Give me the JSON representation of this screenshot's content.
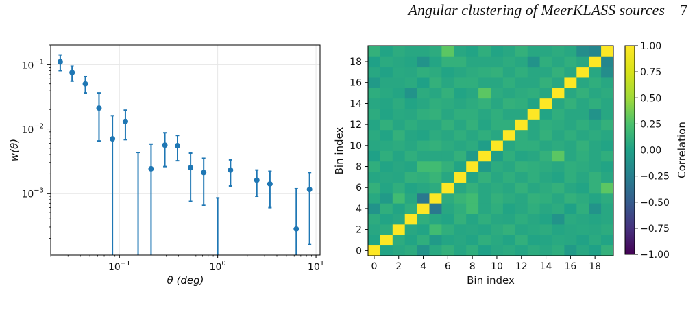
{
  "header": {
    "running_title": "Angular clustering of MeerKLASS sources",
    "page_number": "7"
  },
  "chart_data": [
    {
      "type": "scatter",
      "title": "",
      "xlabel": "θ (deg)",
      "ylabel": "w(θ)",
      "xscale": "log",
      "yscale": "log",
      "xlim": [
        0.02,
        11
      ],
      "ylim": [
        0.00011,
        0.2
      ],
      "grid": true,
      "xticks": [
        {
          "value": 0.1,
          "base": "10",
          "exp": "−1"
        },
        {
          "value": 1,
          "base": "10",
          "exp": "0"
        },
        {
          "value": 10,
          "base": "10",
          "exp": "1"
        }
      ],
      "yticks": [
        {
          "value": 0.001,
          "base": "10",
          "exp": "−3"
        },
        {
          "value": 0.01,
          "base": "10",
          "exp": "−2"
        },
        {
          "value": 0.1,
          "base": "10",
          "exp": "−1"
        }
      ],
      "marker_color": "#1f77b4",
      "points": [
        {
          "x": 0.025,
          "y": 0.11,
          "lo": 0.08,
          "hi": 0.14
        },
        {
          "x": 0.033,
          "y": 0.075,
          "lo": 0.055,
          "hi": 0.095
        },
        {
          "x": 0.045,
          "y": 0.05,
          "lo": 0.036,
          "hi": 0.065
        },
        {
          "x": 0.062,
          "y": 0.021,
          "lo": 0.0065,
          "hi": 0.036
        },
        {
          "x": 0.085,
          "y": 0.007,
          "lo": null,
          "hi": 0.016
        },
        {
          "x": 0.115,
          "y": 0.013,
          "lo": 0.0068,
          "hi": 0.0195
        },
        {
          "x": 0.155,
          "y": null,
          "lo": null,
          "hi": 0.0043
        },
        {
          "x": 0.21,
          "y": 0.0024,
          "lo": null,
          "hi": 0.0058
        },
        {
          "x": 0.29,
          "y": 0.0056,
          "lo": 0.0026,
          "hi": 0.0087
        },
        {
          "x": 0.39,
          "y": 0.0055,
          "lo": 0.0032,
          "hi": 0.0079
        },
        {
          "x": 0.53,
          "y": 0.0025,
          "lo": 0.00075,
          "hi": 0.0042
        },
        {
          "x": 0.72,
          "y": 0.0021,
          "lo": 0.00065,
          "hi": 0.0035
        },
        {
          "x": 1.0,
          "y": null,
          "lo": null,
          "hi": 0.00085
        },
        {
          "x": 1.35,
          "y": 0.0023,
          "lo": 0.0013,
          "hi": 0.0033
        },
        {
          "x": 2.5,
          "y": 0.0016,
          "lo": 0.0009,
          "hi": 0.0023
        },
        {
          "x": 3.4,
          "y": 0.0014,
          "lo": 0.0006,
          "hi": 0.0022
        },
        {
          "x": 6.3,
          "y": 0.00028,
          "lo": null,
          "hi": 0.00118
        },
        {
          "x": 8.6,
          "y": 0.00115,
          "lo": 0.00016,
          "hi": 0.0021
        }
      ]
    },
    {
      "type": "heatmap",
      "title": "",
      "xlabel": "Bin index",
      "ylabel": "Bin index",
      "colorbar_label": "Correlation",
      "vmin": -1.0,
      "vmax": 1.0,
      "colormap": "viridis",
      "n": 20,
      "xticks": [
        0,
        2,
        4,
        6,
        8,
        10,
        12,
        14,
        16,
        18
      ],
      "yticks": [
        0,
        2,
        4,
        6,
        8,
        10,
        12,
        14,
        16,
        18
      ],
      "colorbar_ticks": [
        "1.00",
        "0.75",
        "0.50",
        "0.25",
        "0.00",
        "−0.25",
        "−0.50",
        "−0.75",
        "−1.00"
      ],
      "z": [
        [
          1.0,
          0.02,
          0.05,
          0.08,
          -0.1,
          0.06,
          0.12,
          0.04,
          0.1,
          0.0,
          0.05,
          0.07,
          0.03,
          0.08,
          0.05,
          0.09,
          -0.05,
          0.05,
          0.0,
          0.12
        ],
        [
          0.02,
          1.0,
          0.08,
          0.02,
          0.1,
          -0.05,
          0.03,
          0.05,
          0.02,
          0.1,
          0.06,
          0.02,
          0.11,
          0.02,
          0.03,
          0.06,
          0.05,
          0.01,
          0.07,
          0.02
        ],
        [
          0.05,
          0.08,
          1.0,
          0.05,
          0.02,
          0.2,
          0.1,
          0.04,
          0.05,
          0.03,
          0.08,
          0.12,
          0.04,
          0.06,
          0.08,
          0.03,
          0.05,
          0.06,
          0.05,
          0.08
        ],
        [
          0.08,
          0.02,
          0.05,
          1.0,
          0.1,
          0.05,
          0.02,
          0.12,
          0.03,
          0.1,
          0.05,
          0.04,
          0.09,
          0.05,
          0.02,
          -0.1,
          0.07,
          0.05,
          0.03,
          0.05
        ],
        [
          -0.1,
          0.1,
          0.02,
          0.1,
          1.0,
          -0.3,
          0.05,
          0.1,
          0.2,
          0.05,
          0.1,
          0.02,
          0.05,
          0.1,
          0.05,
          0.08,
          0.0,
          0.1,
          -0.1,
          0.05
        ],
        [
          0.06,
          -0.05,
          0.2,
          0.05,
          -0.3,
          1.0,
          0.08,
          0.15,
          0.2,
          0.05,
          0.12,
          0.08,
          0.05,
          0.12,
          0.1,
          0.05,
          0.12,
          0.08,
          0.03,
          0.08
        ],
        [
          0.12,
          0.03,
          0.1,
          0.02,
          0.05,
          0.08,
          1.0,
          0.05,
          0.12,
          0.05,
          0.08,
          0.05,
          0.12,
          0.05,
          0.08,
          0.12,
          0.05,
          0.02,
          0.12,
          0.3
        ],
        [
          0.04,
          0.05,
          0.04,
          0.12,
          0.1,
          0.15,
          0.05,
          1.0,
          0.02,
          0.12,
          0.05,
          0.1,
          0.05,
          0.1,
          0.05,
          0.02,
          0.1,
          0.05,
          0.12,
          0.05
        ],
        [
          0.1,
          0.02,
          0.05,
          0.03,
          0.2,
          0.2,
          0.12,
          0.02,
          1.0,
          -0.05,
          0.08,
          0.05,
          0.12,
          0.1,
          0.08,
          0.05,
          0.1,
          0.08,
          0.05,
          0.02
        ],
        [
          0.0,
          0.1,
          0.03,
          0.1,
          0.05,
          0.05,
          0.05,
          0.12,
          -0.05,
          1.0,
          -0.02,
          0.1,
          0.03,
          0.05,
          0.12,
          0.3,
          0.05,
          0.1,
          0.05,
          0.1
        ],
        [
          0.05,
          0.06,
          0.08,
          0.05,
          0.1,
          0.12,
          0.08,
          0.05,
          0.08,
          -0.02,
          1.0,
          0.05,
          0.1,
          0.1,
          0.05,
          0.08,
          0.05,
          0.12,
          0.05,
          0.02
        ],
        [
          0.07,
          0.02,
          0.12,
          0.04,
          0.02,
          0.08,
          0.05,
          0.1,
          0.05,
          0.1,
          0.05,
          1.0,
          0.1,
          0.05,
          0.12,
          0.05,
          0.1,
          0.05,
          0.08,
          0.05
        ],
        [
          0.03,
          0.11,
          0.04,
          0.09,
          0.05,
          0.05,
          0.12,
          0.05,
          0.12,
          0.03,
          0.1,
          0.1,
          1.0,
          0.05,
          0.1,
          0.08,
          0.05,
          0.1,
          0.05,
          0.12
        ],
        [
          0.08,
          0.02,
          0.06,
          0.05,
          0.1,
          0.12,
          0.05,
          0.1,
          0.1,
          0.05,
          0.1,
          0.05,
          0.05,
          1.0,
          0.02,
          0.1,
          0.05,
          0.05,
          -0.1,
          0.05
        ],
        [
          0.05,
          0.03,
          0.08,
          0.02,
          0.05,
          0.1,
          0.08,
          0.05,
          0.08,
          0.12,
          0.05,
          0.12,
          0.1,
          0.02,
          1.0,
          0.05,
          0.12,
          0.05,
          0.1,
          0.05
        ],
        [
          0.09,
          0.06,
          0.03,
          -0.1,
          0.08,
          0.05,
          0.12,
          0.02,
          0.05,
          0.3,
          0.08,
          0.05,
          0.08,
          0.1,
          0.05,
          1.0,
          0.05,
          0.12,
          0.05,
          0.08
        ],
        [
          -0.05,
          0.05,
          0.05,
          0.07,
          0.0,
          0.12,
          0.05,
          0.1,
          0.1,
          0.05,
          0.05,
          0.1,
          0.05,
          0.05,
          0.12,
          0.05,
          1.0,
          0.05,
          0.1,
          0.05
        ],
        [
          0.05,
          0.01,
          0.06,
          0.05,
          0.1,
          0.08,
          0.02,
          0.05,
          0.08,
          0.1,
          0.12,
          0.05,
          0.1,
          0.05,
          0.05,
          0.12,
          0.05,
          1.0,
          0.05,
          -0.15
        ],
        [
          0.0,
          0.07,
          0.05,
          0.03,
          -0.1,
          0.03,
          0.12,
          0.12,
          0.05,
          0.05,
          0.05,
          0.08,
          0.05,
          -0.1,
          0.1,
          0.05,
          0.1,
          0.05,
          1.0,
          -0.2
        ],
        [
          0.12,
          0.02,
          0.08,
          0.05,
          0.05,
          0.08,
          0.3,
          0.05,
          0.02,
          0.1,
          0.02,
          0.05,
          0.12,
          0.05,
          0.05,
          0.08,
          0.05,
          -0.15,
          -0.2,
          1.0
        ]
      ]
    }
  ]
}
